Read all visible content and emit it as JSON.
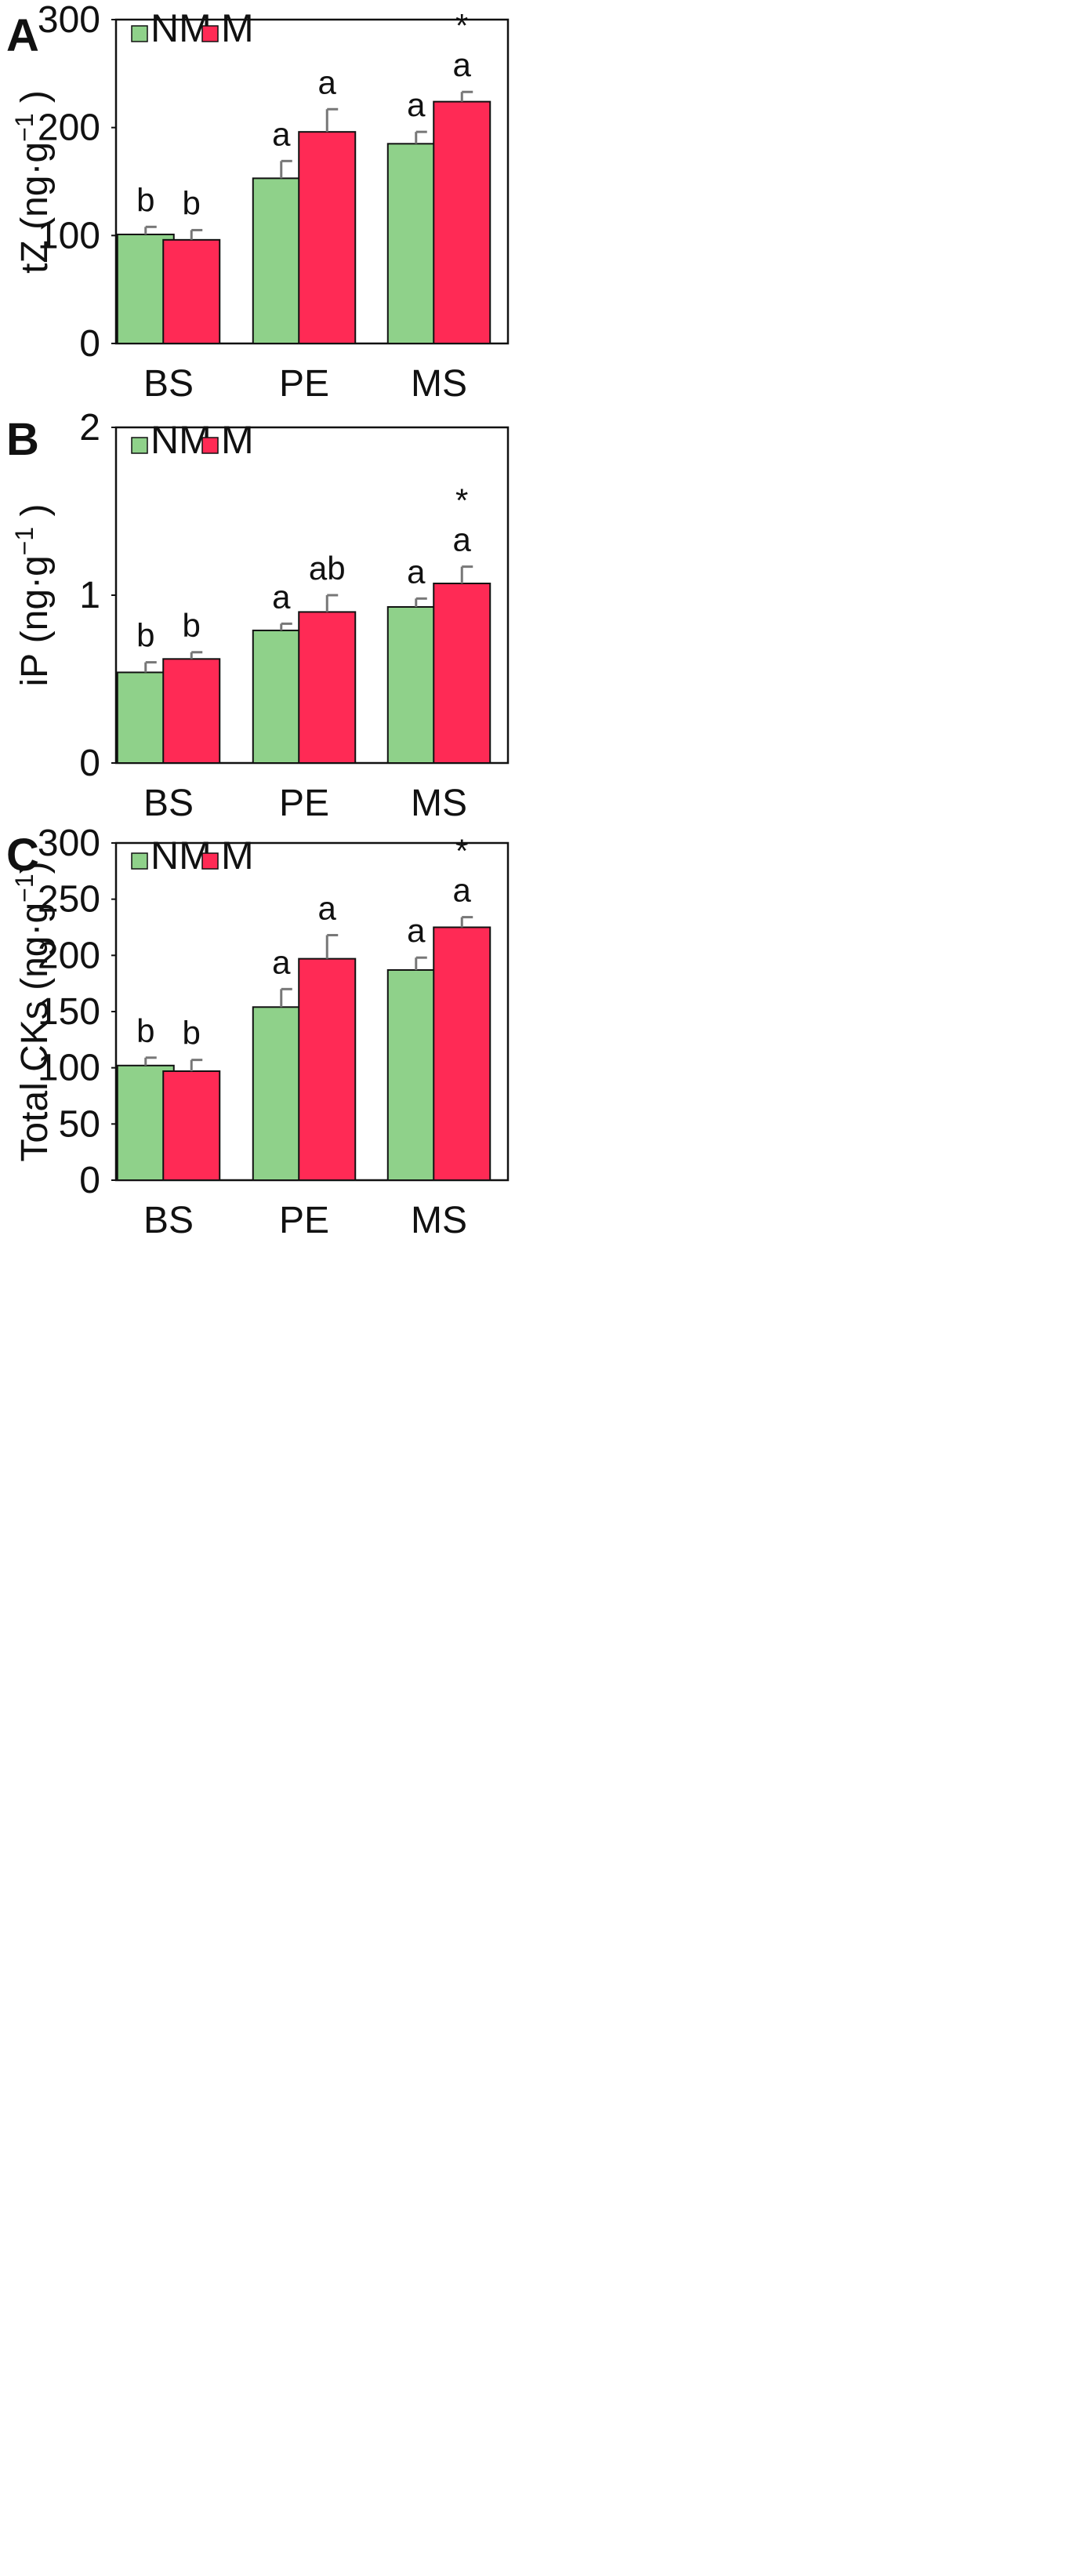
{
  "figure": {
    "colors": {
      "NM": "#8fd18a",
      "M": "#ff2a55",
      "error_bar": "#777777",
      "axis": "#111111"
    }
  },
  "chart_data": [
    {
      "type": "bar",
      "panel": "A",
      "title": "",
      "xlabel": "",
      "ylabel": "tZ (ng·g⁻¹ )",
      "ylabel_parts": [
        "tZ (ng·g",
        "−1",
        " )"
      ],
      "categories": [
        "BS",
        "PE",
        "MS"
      ],
      "ylim": [
        0,
        300
      ],
      "yticks": [
        0,
        100,
        200,
        300
      ],
      "legend": {
        "placement": "top-left",
        "entries": [
          "NM",
          "M"
        ]
      },
      "series": [
        {
          "name": "NM",
          "values": [
            101,
            153,
            185
          ],
          "errors": [
            7,
            16,
            11
          ],
          "sig": [
            "b",
            "a",
            "a"
          ],
          "star": [
            "",
            "",
            ""
          ]
        },
        {
          "name": "M",
          "values": [
            96,
            196,
            224
          ],
          "errors": [
            9,
            21,
            9
          ],
          "sig": [
            "b",
            "a",
            "a"
          ],
          "star": [
            "",
            "",
            "*"
          ]
        }
      ]
    },
    {
      "type": "bar",
      "panel": "B",
      "title": "",
      "xlabel": "",
      "ylabel": "iP (ng·g⁻¹ )",
      "ylabel_parts": [
        "iP (ng·g",
        "−1",
        " )"
      ],
      "categories": [
        "BS",
        "PE",
        "MS"
      ],
      "ylim": [
        0,
        2
      ],
      "yticks": [
        0,
        1,
        2
      ],
      "legend": {
        "placement": "top-left",
        "entries": [
          "NM",
          "M"
        ]
      },
      "series": [
        {
          "name": "NM",
          "values": [
            0.54,
            0.79,
            0.93
          ],
          "errors": [
            0.06,
            0.04,
            0.05
          ],
          "sig": [
            "b",
            "a",
            "a"
          ],
          "star": [
            "",
            "",
            ""
          ]
        },
        {
          "name": "M",
          "values": [
            0.62,
            0.9,
            1.07
          ],
          "errors": [
            0.04,
            0.1,
            0.1
          ],
          "sig": [
            "b",
            "ab",
            "a"
          ],
          "star": [
            "",
            "",
            "*"
          ]
        }
      ]
    },
    {
      "type": "bar",
      "panel": "C",
      "title": "",
      "xlabel": "",
      "ylabel": "Total CKs (ng·g⁻¹)",
      "ylabel_parts": [
        "Total CKs (ng·g",
        "−1",
        ")"
      ],
      "categories": [
        "BS",
        "PE",
        "MS"
      ],
      "ylim": [
        0,
        300
      ],
      "yticks": [
        0,
        50,
        100,
        150,
        200,
        250,
        300
      ],
      "legend": {
        "placement": "top-left",
        "entries": [
          "NM",
          "M"
        ]
      },
      "series": [
        {
          "name": "NM",
          "values": [
            102,
            154,
            187
          ],
          "errors": [
            7,
            16,
            11
          ],
          "sig": [
            "b",
            "a",
            "a"
          ],
          "star": [
            "",
            "",
            ""
          ]
        },
        {
          "name": "M",
          "values": [
            97,
            197,
            225
          ],
          "errors": [
            10,
            21,
            9
          ],
          "sig": [
            "b",
            "a",
            "a"
          ],
          "star": [
            "",
            "",
            "*"
          ]
        }
      ]
    }
  ]
}
